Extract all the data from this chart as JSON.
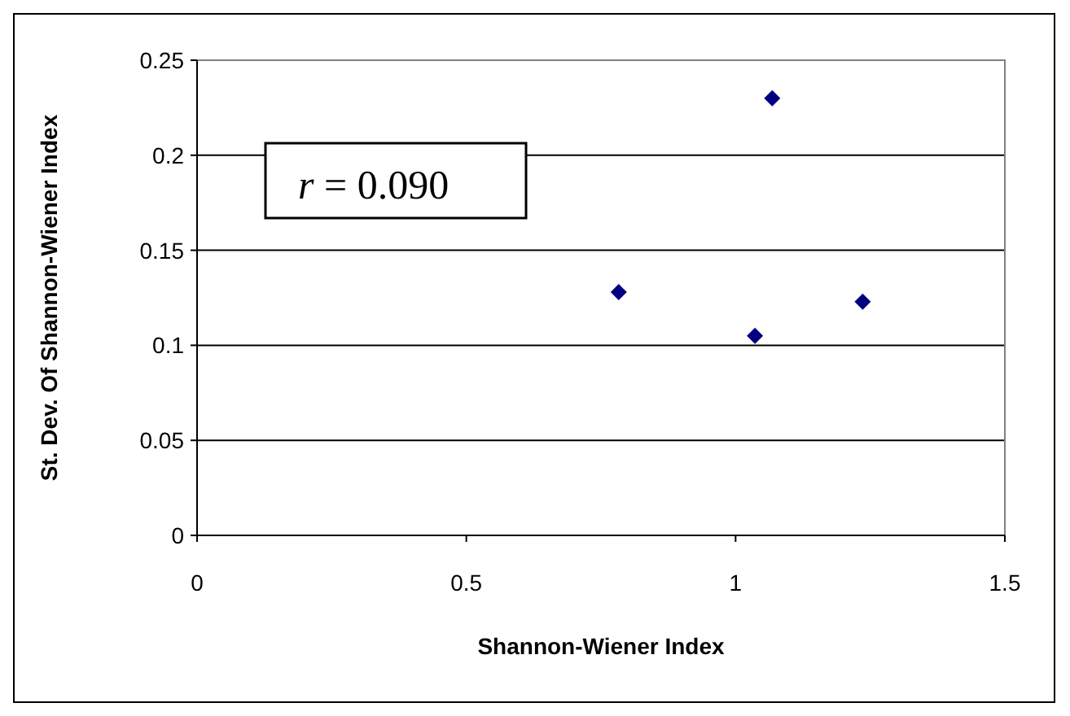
{
  "chart_data": {
    "type": "scatter",
    "xlabel": "Shannon-Wiener Index",
    "ylabel": "St. Dev. Of Shannon-Wiener Index",
    "x": [
      0.783,
      1.068,
      1.036,
      1.236
    ],
    "series": [
      {
        "color": "#000080",
        "values": [
          0.128,
          0.23,
          0.105,
          0.123
        ]
      }
    ],
    "xlim": [
      0,
      1.5
    ],
    "xticks": [
      0,
      0.5,
      1,
      1.5
    ],
    "ylim": [
      0,
      0.25
    ],
    "yticks": [
      0,
      0.05,
      0.1,
      0.15,
      0.2,
      0.25
    ],
    "grid": "y",
    "marker": "diamond",
    "legend": false,
    "annotations": [
      "r = 0.090"
    ]
  }
}
